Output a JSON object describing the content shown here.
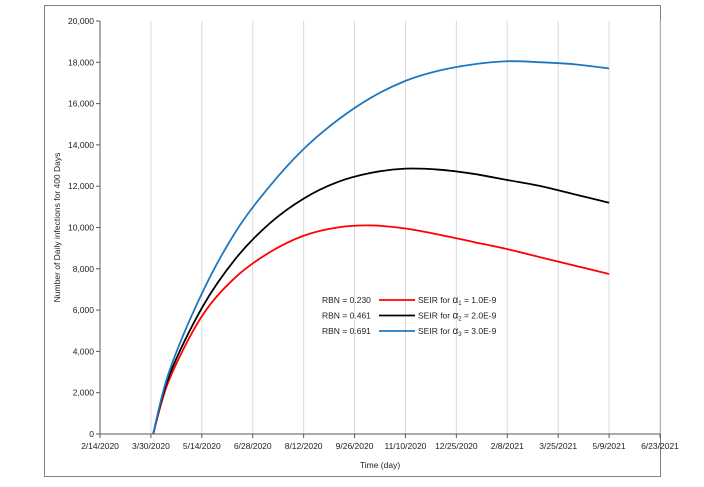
{
  "chart_data": {
    "type": "line",
    "xlabel": "Time (day)",
    "ylabel": "Number of Daily infections for 400 Days",
    "x_ticks": [
      "2/14/2020",
      "3/30/2020",
      "5/14/2020",
      "6/28/2020",
      "8/12/2020",
      "9/26/2020",
      "11/10/2020",
      "12/25/2020",
      "2/8/2021",
      "3/25/2021",
      "5/9/2021",
      "6/23/2021"
    ],
    "xlim": [
      "2/14/2020",
      "6/23/2021"
    ],
    "y_ticks": [
      "0",
      "2,000",
      "4,000",
      "6,000",
      "8,000",
      "10,000",
      "12,000",
      "14,000",
      "16,000",
      "18,000",
      "20,000"
    ],
    "ylim": [
      0,
      20000
    ],
    "grid": "vertical",
    "legend_position": "center",
    "series": [
      {
        "name": "SEIR for α1 = 1.0E-9",
        "rbn": "RBN = 0.230",
        "legend_prefix": "SEIR for",
        "legend_alpha": "α",
        "legend_sub": "1",
        "legend_value": "= 1.0E-9",
        "color": "#ff0000",
        "x": [
          "4/1/2020",
          "4/15/2020",
          "5/14/2020",
          "6/13/2020",
          "7/13/2020",
          "8/12/2020",
          "9/11/2020",
          "10/11/2020",
          "11/10/2020",
          "12/10/2020",
          "1/9/2021",
          "2/8/2021",
          "3/10/2021",
          "4/9/2021",
          "5/9/2021"
        ],
        "y": [
          0,
          2600,
          5700,
          7600,
          8800,
          9600,
          10000,
          10100,
          9950,
          9650,
          9300,
          8950,
          8550,
          8150,
          7750
        ]
      },
      {
        "name": "SEIR for α2 = 2.0E-9",
        "rbn": "RBN = 0.461",
        "legend_prefix": "SEIR for",
        "legend_alpha": "α",
        "legend_sub": "2",
        "legend_value": "= 2.0E-9",
        "color": "#000000",
        "x": [
          "4/1/2020",
          "4/15/2020",
          "5/14/2020",
          "6/13/2020",
          "7/13/2020",
          "8/12/2020",
          "9/11/2020",
          "10/11/2020",
          "11/10/2020",
          "12/10/2020",
          "1/9/2021",
          "2/8/2021",
          "3/10/2021",
          "4/9/2021",
          "5/9/2021"
        ],
        "y": [
          0,
          2800,
          6100,
          8500,
          10200,
          11400,
          12200,
          12650,
          12850,
          12800,
          12600,
          12300,
          12000,
          11600,
          11200
        ]
      },
      {
        "name": "SEIR for α3 = 3.0E-9",
        "rbn": "RBN = 0.691",
        "legend_prefix": "SEIR for",
        "legend_alpha": "α",
        "legend_sub": "3",
        "legend_value": "= 3.0E-9",
        "color": "#1f77c0",
        "x": [
          "4/1/2020",
          "4/15/2020",
          "5/14/2020",
          "6/13/2020",
          "7/13/2020",
          "8/12/2020",
          "9/11/2020",
          "10/11/2020",
          "11/10/2020",
          "12/10/2020",
          "1/9/2021",
          "2/8/2021",
          "3/10/2021",
          "4/9/2021",
          "5/9/2021"
        ],
        "y": [
          0,
          3000,
          6800,
          9800,
          12000,
          13800,
          15200,
          16300,
          17100,
          17600,
          17900,
          18050,
          18000,
          17900,
          17700
        ]
      }
    ]
  }
}
